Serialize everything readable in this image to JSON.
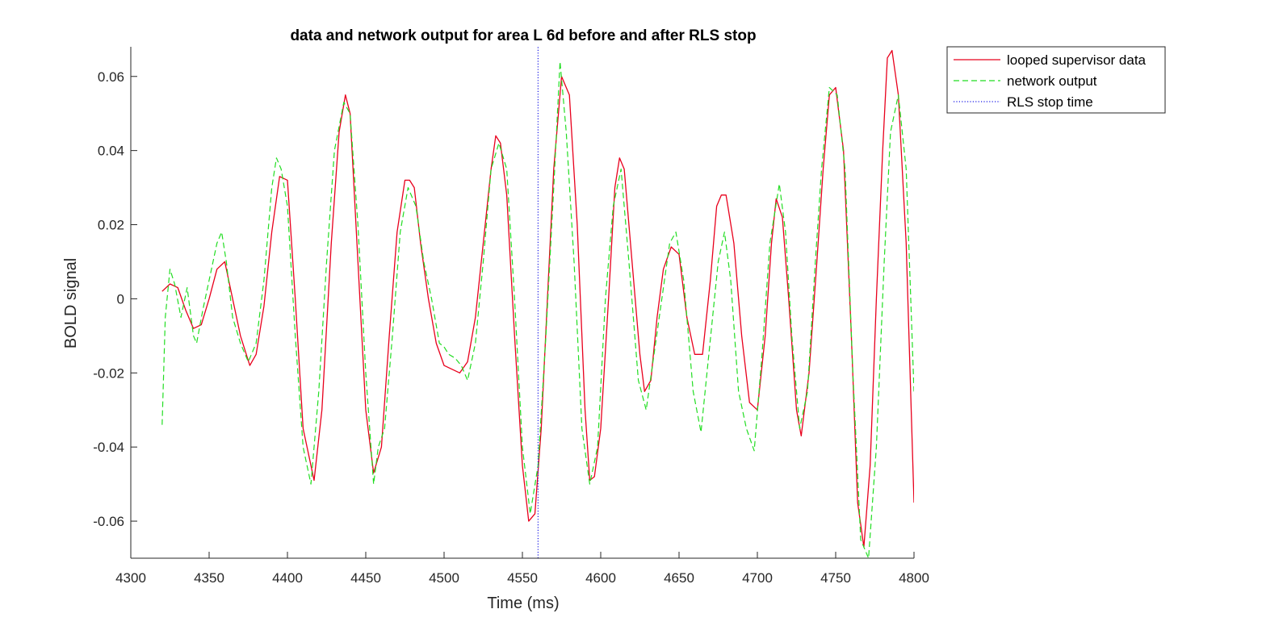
{
  "chart_data": {
    "type": "line",
    "title": "data and network output for area L 6d before and after RLS stop",
    "xlabel": "Time (ms)",
    "ylabel": "BOLD signal",
    "xlim": [
      4300,
      4800
    ],
    "ylim": [
      -0.07,
      0.068
    ],
    "xticks": [
      4300,
      4350,
      4400,
      4450,
      4500,
      4550,
      4600,
      4650,
      4700,
      4750,
      4800
    ],
    "xtick_labels": [
      "4300",
      "4350",
      "4400",
      "4450",
      "4500",
      "4550",
      "4600",
      "4650",
      "4700",
      "4750",
      "4800"
    ],
    "yticks": [
      -0.06,
      -0.04,
      -0.02,
      0,
      0.02,
      0.04,
      0.06
    ],
    "ytick_labels": [
      "-0.06",
      "-0.04",
      "-0.02",
      "0",
      "0.02",
      "0.04",
      "0.06"
    ],
    "grid": false,
    "legend_position": "outside-top-right",
    "series": [
      {
        "name": "looped supervisor data",
        "color": "#e8001c",
        "style": "solid",
        "x": [
          4320,
          4325,
          4330,
          4335,
          4340,
          4345,
          4350,
          4355,
          4360,
          4365,
          4370,
          4376,
          4380,
          4385,
          4390,
          4395,
          4400,
          4405,
          4410,
          4417,
          4422,
          4428,
          4433,
          4437,
          4440,
          4445,
          4450,
          4455,
          4460,
          4465,
          4470,
          4475,
          4478,
          4481,
          4485,
          4490,
          4495,
          4500,
          4505,
          4510,
          4515,
          4520,
          4525,
          4530,
          4533,
          4536,
          4540,
          4545,
          4550,
          4554,
          4558,
          4562,
          4566,
          4570,
          4575,
          4580,
          4585,
          4590,
          4593,
          4596,
          4600,
          4605,
          4609,
          4612,
          4615,
          4620,
          4625,
          4628,
          4632,
          4636,
          4640,
          4645,
          4650,
          4655,
          4660,
          4665,
          4670,
          4674,
          4677,
          4680,
          4685,
          4690,
          4695,
          4700,
          4705,
          4709,
          4712,
          4716,
          4720,
          4725,
          4728,
          4733,
          4738,
          4742,
          4746,
          4750,
          4755,
          4760,
          4764,
          4768,
          4772,
          4776,
          4780,
          4783,
          4786,
          4790,
          4795,
          4800
        ],
        "y": [
          0.002,
          0.004,
          0.003,
          -0.003,
          -0.008,
          -0.007,
          0.0,
          0.008,
          0.01,
          0.0,
          -0.01,
          -0.018,
          -0.015,
          -0.002,
          0.018,
          0.033,
          0.032,
          0.0,
          -0.035,
          -0.049,
          -0.03,
          0.015,
          0.045,
          0.055,
          0.05,
          0.01,
          -0.03,
          -0.047,
          -0.04,
          -0.01,
          0.018,
          0.032,
          0.032,
          0.03,
          0.015,
          0.0,
          -0.012,
          -0.018,
          -0.019,
          -0.02,
          -0.017,
          -0.005,
          0.015,
          0.035,
          0.044,
          0.042,
          0.028,
          -0.01,
          -0.045,
          -0.06,
          -0.058,
          -0.035,
          0.0,
          0.035,
          0.06,
          0.055,
          0.02,
          -0.03,
          -0.049,
          -0.048,
          -0.035,
          0.0,
          0.03,
          0.038,
          0.035,
          0.01,
          -0.015,
          -0.025,
          -0.022,
          -0.005,
          0.008,
          0.014,
          0.012,
          -0.005,
          -0.015,
          -0.015,
          0.005,
          0.025,
          0.028,
          0.028,
          0.015,
          -0.01,
          -0.028,
          -0.03,
          -0.01,
          0.015,
          0.027,
          0.022,
          0.0,
          -0.03,
          -0.037,
          -0.02,
          0.01,
          0.035,
          0.055,
          0.057,
          0.04,
          -0.01,
          -0.055,
          -0.067,
          -0.045,
          0.0,
          0.04,
          0.065,
          0.067,
          0.055,
          0.015,
          -0.055
        ]
      },
      {
        "name": "network output",
        "color": "#22dd22",
        "style": "dashed",
        "x": [
          4320,
          4322,
          4325,
          4328,
          4332,
          4336,
          4340,
          4342,
          4346,
          4350,
          4355,
          4358,
          4361,
          4365,
          4370,
          4375,
          4380,
          4385,
          4390,
          4393,
          4396,
          4400,
          4405,
          4410,
          4415,
          4420,
          4425,
          4430,
          4436,
          4440,
          4445,
          4450,
          4455,
          4458,
          4462,
          4467,
          4472,
          4477,
          4482,
          4487,
          4492,
          4497,
          4500,
          4503,
          4507,
          4511,
          4515,
          4520,
          4525,
          4530,
          4535,
          4540,
          4545,
          4550,
          4555,
          4560,
          4565,
          4570,
          4574,
          4578,
          4583,
          4588,
          4593,
          4598,
          4603,
          4608,
          4613,
          4618,
          4624,
          4629,
          4634,
          4639,
          4644,
          4648,
          4653,
          4659,
          4664,
          4669,
          4675,
          4679,
          4683,
          4688,
          4693,
          4698,
          4703,
          4708,
          4714,
          4718,
          4722,
          4727,
          4732,
          4737,
          4741,
          4746,
          4751,
          4756,
          4761,
          4766,
          4771,
          4776,
          4781,
          4785,
          4790,
          4795,
          4800
        ],
        "y": [
          -0.034,
          -0.005,
          0.008,
          0.004,
          -0.005,
          0.003,
          -0.01,
          -0.012,
          -0.003,
          0.005,
          0.015,
          0.018,
          0.01,
          -0.005,
          -0.012,
          -0.017,
          -0.012,
          0.005,
          0.03,
          0.038,
          0.035,
          0.025,
          -0.01,
          -0.04,
          -0.05,
          -0.025,
          0.01,
          0.04,
          0.053,
          0.05,
          0.02,
          -0.02,
          -0.05,
          -0.04,
          -0.035,
          -0.01,
          0.018,
          0.03,
          0.025,
          0.01,
          0.0,
          -0.012,
          -0.013,
          -0.015,
          -0.016,
          -0.018,
          -0.022,
          -0.012,
          0.01,
          0.035,
          0.042,
          0.035,
          0.0,
          -0.04,
          -0.058,
          -0.045,
          -0.01,
          0.03,
          0.064,
          0.045,
          0.01,
          -0.035,
          -0.05,
          -0.04,
          0.0,
          0.025,
          0.035,
          0.01,
          -0.022,
          -0.03,
          -0.015,
          0.0,
          0.015,
          0.018,
          0.005,
          -0.025,
          -0.036,
          -0.015,
          0.01,
          0.018,
          0.005,
          -0.025,
          -0.035,
          -0.041,
          -0.015,
          0.015,
          0.031,
          0.018,
          -0.01,
          -0.035,
          -0.025,
          0.01,
          0.035,
          0.057,
          0.055,
          0.035,
          -0.02,
          -0.065,
          -0.07,
          -0.04,
          0.01,
          0.045,
          0.055,
          0.035,
          -0.025
        ]
      },
      {
        "name": "RLS stop time",
        "color": "#1a1ae6",
        "style": "dotted",
        "x": [
          4560,
          4560
        ],
        "y": [
          -0.07,
          0.068
        ]
      }
    ]
  }
}
